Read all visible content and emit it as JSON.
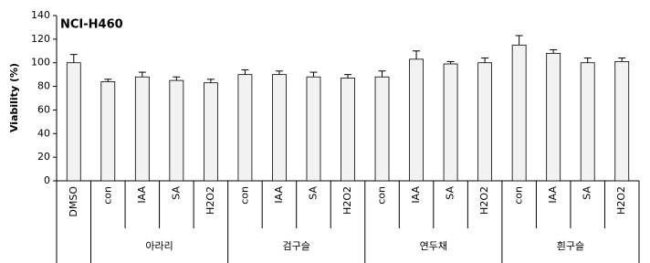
{
  "chart_data": {
    "type": "bar",
    "annotation": "NCI-H460",
    "y_label": "Viability (%)",
    "groups": [
      {
        "categories": [
          "DMSO"
        ]
      },
      {
        "name": "아라리",
        "categories": [
          "con",
          "IAA",
          "SA",
          "H2O2"
        ]
      },
      {
        "name": "검구슬",
        "categories": [
          "con",
          "IAA",
          "SA",
          "H2O2"
        ]
      },
      {
        "name": "연두채",
        "categories": [
          "con",
          "IAA",
          "SA",
          "H2O2"
        ]
      },
      {
        "name": "흰구슬",
        "categories": [
          "con",
          "IAA",
          "SA",
          "H2O2"
        ]
      }
    ],
    "series": [
      {
        "color": "#f2f2f2",
        "values": [
          100,
          84,
          88,
          85,
          83,
          90,
          90,
          88,
          87,
          88,
          103,
          99,
          100,
          115,
          108,
          100,
          101
        ],
        "errors": [
          7,
          2,
          4,
          3,
          3,
          4,
          3,
          4,
          3,
          5,
          7,
          2,
          4,
          8,
          3,
          4,
          3
        ]
      }
    ],
    "ylim": [
      0,
      140
    ],
    "yticks": [
      0,
      20,
      40,
      60,
      80,
      100,
      120,
      140
    ]
  }
}
